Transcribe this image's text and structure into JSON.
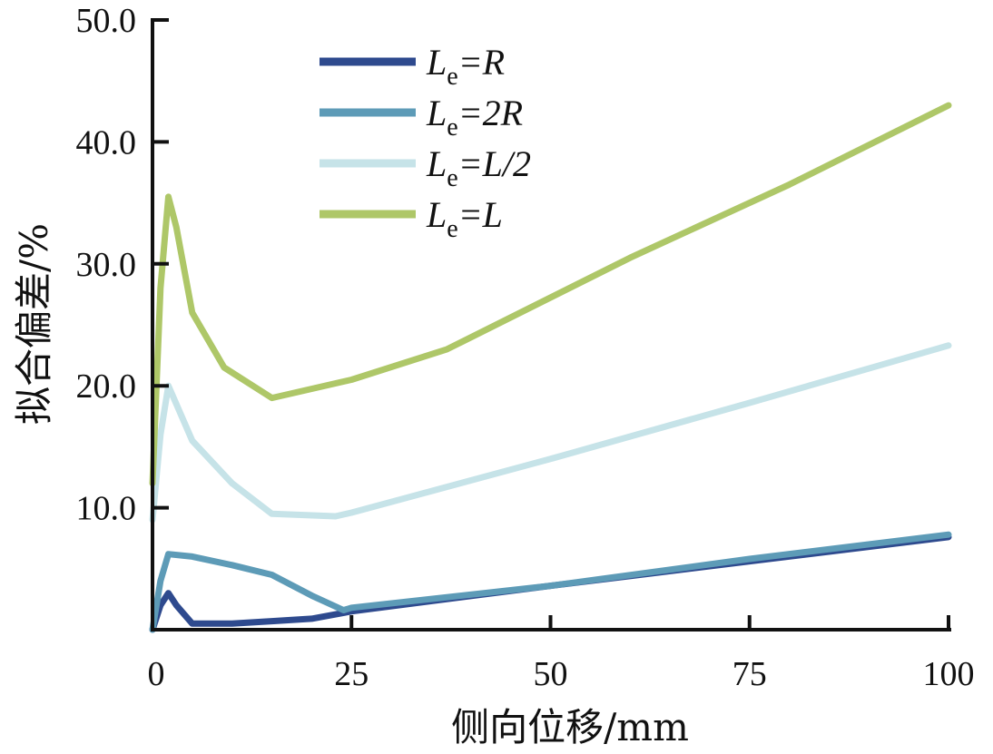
{
  "chart_data": {
    "type": "line",
    "xlabel": "侧向位移/mm",
    "ylabel": "拟合偏差/%",
    "xlim": [
      0,
      100
    ],
    "ylim": [
      0,
      50
    ],
    "xticks": [
      "0",
      "25",
      "50",
      "75",
      "100"
    ],
    "yticks": [
      "10.0",
      "20.0",
      "30.0",
      "40.0",
      "50.0"
    ],
    "xtick_values": [
      0,
      25,
      50,
      75,
      100
    ],
    "ytick_values": [
      10,
      20,
      30,
      40,
      50
    ],
    "legend": {
      "position": "top-left"
    },
    "series": [
      {
        "name": "Le=R",
        "label_main": "L",
        "label_sub": "e",
        "label_rest": "=R",
        "color": "#2e4a8e",
        "points": [
          [
            0,
            0
          ],
          [
            1,
            2
          ],
          [
            2,
            3
          ],
          [
            3,
            2
          ],
          [
            5,
            0.5
          ],
          [
            10,
            0.5
          ],
          [
            15,
            0.7
          ],
          [
            20,
            0.9
          ],
          [
            25,
            1.5
          ],
          [
            50,
            3.6
          ],
          [
            75,
            5.6
          ],
          [
            100,
            7.6
          ]
        ]
      },
      {
        "name": "Le=2R",
        "label_main": "L",
        "label_sub": "e",
        "label_rest": "=2R",
        "color": "#5d9bb7",
        "points": [
          [
            0,
            0
          ],
          [
            1,
            4
          ],
          [
            2,
            6.2
          ],
          [
            5,
            6
          ],
          [
            10,
            5.3
          ],
          [
            15,
            4.5
          ],
          [
            20,
            2.8
          ],
          [
            24,
            1.6
          ],
          [
            25,
            1.8
          ],
          [
            50,
            3.6
          ],
          [
            75,
            5.8
          ],
          [
            100,
            7.8
          ]
        ]
      },
      {
        "name": "Le=L/2",
        "label_main": "L",
        "label_sub": "e",
        "label_rest": "=L/2",
        "color": "#c6e3e8",
        "points": [
          [
            0,
            9
          ],
          [
            1,
            16
          ],
          [
            2,
            20
          ],
          [
            3,
            18.5
          ],
          [
            5,
            15.5
          ],
          [
            10,
            12
          ],
          [
            15,
            9.5
          ],
          [
            23,
            9.3
          ],
          [
            25,
            9.6
          ],
          [
            50,
            14
          ],
          [
            75,
            18.6
          ],
          [
            100,
            23.3
          ]
        ]
      },
      {
        "name": "Le=L",
        "label_main": "L",
        "label_sub": "e",
        "label_rest": "=L",
        "color": "#aec768",
        "points": [
          [
            0,
            12
          ],
          [
            1,
            28
          ],
          [
            2,
            35.5
          ],
          [
            3,
            33
          ],
          [
            5,
            26
          ],
          [
            9,
            21.5
          ],
          [
            15,
            19
          ],
          [
            25,
            20.5
          ],
          [
            37,
            23
          ],
          [
            60,
            30.5
          ],
          [
            80,
            36.5
          ],
          [
            100,
            43
          ]
        ]
      }
    ]
  }
}
